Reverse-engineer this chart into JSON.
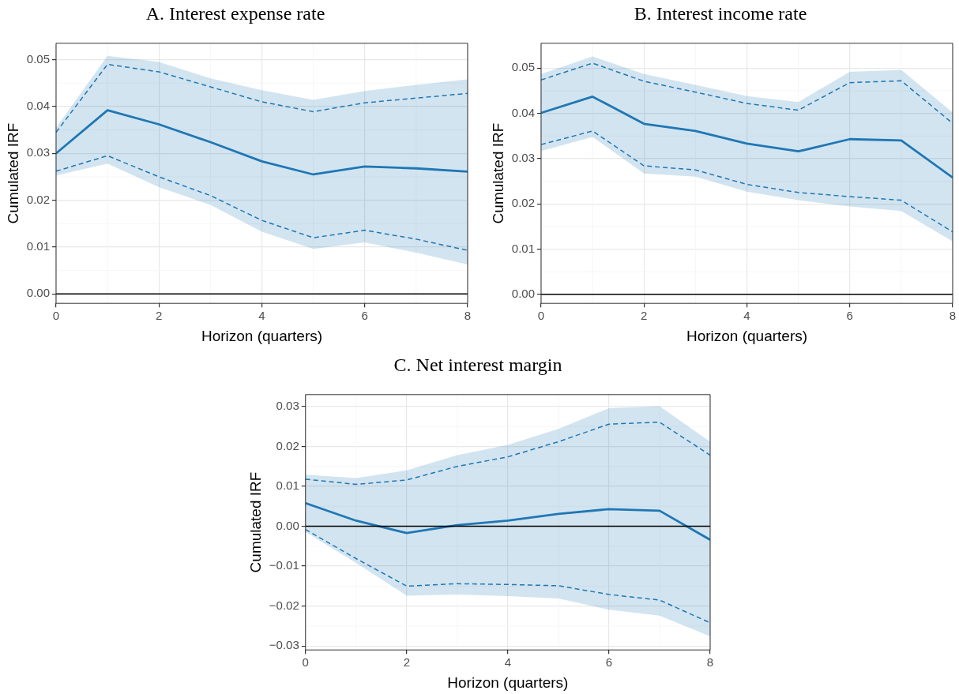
{
  "chart_data": [
    {
      "type": "line",
      "title": "A. Interest expense rate",
      "xlabel": "Horizon (quarters)",
      "ylabel": "Cumulated IRF",
      "x": [
        0,
        1,
        2,
        3,
        4,
        5,
        6,
        7,
        8
      ],
      "marker": "none",
      "grid": true,
      "series": [
        {
          "color": "#1f77b4",
          "line_style": "solid",
          "values": [
            0.03,
            0.0392,
            0.0362,
            0.0324,
            0.0283,
            0.0255,
            0.0272,
            0.0268,
            0.0261
          ],
          "lower": [
            0.0253,
            0.0278,
            0.0228,
            0.019,
            0.0133,
            0.0096,
            0.011,
            0.0088,
            0.0063
          ],
          "upper": [
            0.0355,
            0.0508,
            0.0495,
            0.046,
            0.0435,
            0.0414,
            0.0433,
            0.0446,
            0.0458
          ]
        },
        {
          "color": "#1f77b4",
          "line_style": "dashed",
          "values": [
            0.0345,
            0.049,
            0.0474,
            0.0442,
            0.041,
            0.0389,
            0.0408,
            0.0418,
            0.0428
          ]
        },
        {
          "color": "#1f77b4",
          "line_style": "dashed",
          "values": [
            0.0262,
            0.0295,
            0.025,
            0.021,
            0.0157,
            0.012,
            0.0136,
            0.0117,
            0.0093
          ]
        }
      ],
      "xlim": [
        0,
        8
      ],
      "xticks": [
        0,
        2,
        4,
        6,
        8
      ],
      "ylim": [
        -0.002,
        0.0535
      ],
      "yticks": [
        {
          "value": 0,
          "label": "0.00"
        },
        {
          "value": 0.01,
          "label": "0.01"
        },
        {
          "value": 0.02,
          "label": "0.02"
        },
        {
          "value": 0.03,
          "label": "0.03"
        },
        {
          "value": 0.04,
          "label": "0.04"
        },
        {
          "value": 0.05,
          "label": "0.05"
        }
      ],
      "ref_lines": [
        {
          "axis": "y",
          "value": 0,
          "color": "#000000"
        }
      ]
    },
    {
      "type": "line",
      "title": "B. Interest income rate",
      "xlabel": "Horizon (quarters)",
      "ylabel": "Cumulated IRF",
      "x": [
        0,
        1,
        2,
        3,
        4,
        5,
        6,
        7,
        8
      ],
      "marker": "none",
      "grid": true,
      "series": [
        {
          "color": "#1f77b4",
          "line_style": "solid",
          "values": [
            0.0401,
            0.0437,
            0.0377,
            0.0361,
            0.0333,
            0.0316,
            0.0343,
            0.034,
            0.0258
          ],
          "lower": [
            0.0317,
            0.0348,
            0.0267,
            0.026,
            0.0227,
            0.0208,
            0.0194,
            0.0184,
            0.0117
          ],
          "upper": [
            0.0487,
            0.0526,
            0.0487,
            0.0463,
            0.0438,
            0.0425,
            0.0492,
            0.0496,
            0.0402
          ]
        },
        {
          "color": "#1f77b4",
          "line_style": "dashed",
          "values": [
            0.0474,
            0.0511,
            0.0471,
            0.0447,
            0.0422,
            0.0407,
            0.0468,
            0.0472,
            0.0378
          ]
        },
        {
          "color": "#1f77b4",
          "line_style": "dashed",
          "values": [
            0.0331,
            0.0361,
            0.0284,
            0.0275,
            0.0243,
            0.0225,
            0.0216,
            0.0208,
            0.0138
          ]
        }
      ],
      "xlim": [
        0,
        8
      ],
      "xticks": [
        0,
        2,
        4,
        6,
        8
      ],
      "ylim": [
        -0.002,
        0.0555
      ],
      "yticks": [
        {
          "value": 0,
          "label": "0.00"
        },
        {
          "value": 0.01,
          "label": "0.01"
        },
        {
          "value": 0.02,
          "label": "0.02"
        },
        {
          "value": 0.03,
          "label": "0.03"
        },
        {
          "value": 0.04,
          "label": "0.04"
        },
        {
          "value": 0.05,
          "label": "0.05"
        }
      ],
      "ref_lines": [
        {
          "axis": "y",
          "value": 0,
          "color": "#000000"
        }
      ]
    },
    {
      "type": "line",
      "title": "C. Net interest margin",
      "xlabel": "Horizon (quarters)",
      "ylabel": "Cumulated IRF",
      "x": [
        0,
        1,
        2,
        3,
        4,
        5,
        6,
        7,
        8
      ],
      "marker": "none",
      "grid": true,
      "series": [
        {
          "color": "#1f77b4",
          "line_style": "solid",
          "values": [
            0.0058,
            0.0014,
            -0.0017,
            0.0003,
            0.0014,
            0.0031,
            0.0043,
            0.0039,
            -0.0034
          ],
          "lower": [
            -0.0014,
            -0.0092,
            -0.0174,
            -0.0171,
            -0.0175,
            -0.0181,
            -0.0209,
            -0.0224,
            -0.0276
          ],
          "upper": [
            0.0129,
            0.0121,
            0.014,
            0.0178,
            0.0204,
            0.0244,
            0.0296,
            0.0301,
            0.0212
          ]
        },
        {
          "color": "#1f77b4",
          "line_style": "dashed",
          "values": [
            0.0118,
            0.0105,
            0.0116,
            0.015,
            0.0174,
            0.0212,
            0.0256,
            0.0261,
            0.0178
          ]
        },
        {
          "color": "#1f77b4",
          "line_style": "dashed",
          "values": [
            -0.0008,
            -0.0081,
            -0.015,
            -0.0144,
            -0.0146,
            -0.0149,
            -0.0171,
            -0.0185,
            -0.0242
          ]
        }
      ],
      "xlim": [
        0,
        8
      ],
      "xticks": [
        0,
        2,
        4,
        6,
        8
      ],
      "ylim": [
        -0.031,
        0.033
      ],
      "yticks": [
        {
          "value": -0.03,
          "label": "−0.03"
        },
        {
          "value": -0.02,
          "label": "−0.02"
        },
        {
          "value": -0.01,
          "label": "−0.01"
        },
        {
          "value": 0,
          "label": "0.00"
        },
        {
          "value": 0.01,
          "label": "0.01"
        },
        {
          "value": 0.02,
          "label": "0.02"
        },
        {
          "value": 0.03,
          "label": "0.03"
        }
      ],
      "ref_lines": [
        {
          "axis": "y",
          "value": 0,
          "color": "#000000"
        }
      ]
    }
  ]
}
